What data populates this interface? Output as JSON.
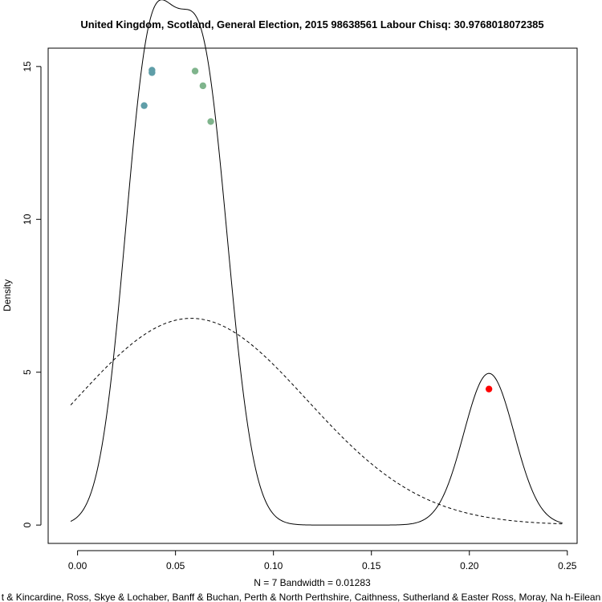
{
  "chart_data": {
    "type": "line",
    "title": "United Kingdom, Scotland, General Election, 2015 98638561 Labour Chisq: 30.9768018072385",
    "xlabel": "N = 7   Bandwidth = 0.01283",
    "sublabel": "t & Kincardine, Ross, Skye & Lochaber, Banff & Buchan, Perth & North Perthshire, Caithness, Sutherland & Easter Ross, Moray, Na h-Eilean",
    "ylabel": "Density",
    "xlim": [
      -0.015,
      0.255
    ],
    "ylim": [
      -0.6,
      15.6
    ],
    "x_ticks": [
      0.0,
      0.05,
      0.1,
      0.15,
      0.2,
      0.25
    ],
    "x_tick_labels": [
      "0.00",
      "0.05",
      "0.10",
      "0.15",
      "0.20",
      "0.25"
    ],
    "y_ticks": [
      0,
      5,
      10,
      15
    ],
    "y_tick_labels": [
      "0",
      "5",
      "10",
      "15"
    ],
    "series": [
      {
        "style": "solid",
        "kde_points": [
          0.034,
          0.038,
          0.038,
          0.06,
          0.064,
          0.068,
          0.21
        ],
        "bandwidth": 0.01283,
        "x_range": [
          -0.0035,
          0.2475
        ],
        "peak_scale": 1.117
      },
      {
        "style": "dashed",
        "mean": 0.058,
        "sd": 0.059,
        "x_range": [
          -0.0035,
          0.2475
        ]
      }
    ],
    "points": [
      {
        "x": 0.034,
        "y": 13.72,
        "color": "#5f9ea8"
      },
      {
        "x": 0.038,
        "y": 14.8,
        "color": "#5f9ea8"
      },
      {
        "x": 0.038,
        "y": 14.88,
        "color": "#5f9ea8"
      },
      {
        "x": 0.06,
        "y": 14.85,
        "color": "#7fb48c"
      },
      {
        "x": 0.064,
        "y": 14.37,
        "color": "#7fb48c"
      },
      {
        "x": 0.068,
        "y": 13.2,
        "color": "#7fb48c"
      },
      {
        "x": 0.21,
        "y": 4.45,
        "color": "#ff0000"
      }
    ],
    "grid": false,
    "legend": "none"
  }
}
